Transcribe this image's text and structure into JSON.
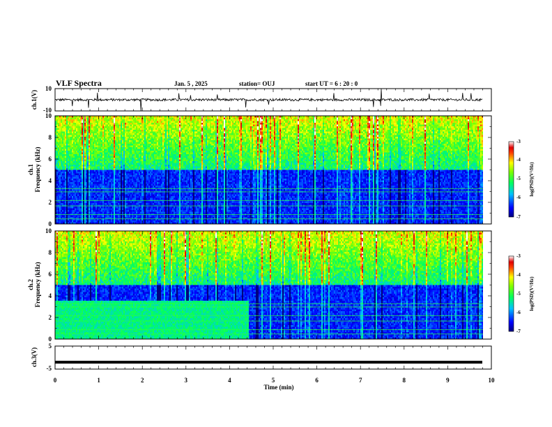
{
  "header": {
    "title": "VLF Spectra",
    "date": "Jan. 5 , 2025",
    "station": "station= OUJ",
    "start": "start UT = 6 : 20 : 0"
  },
  "chart_data": [
    {
      "type": "line",
      "panel": "ch1-waveform",
      "ylabel": "ch.1(V)",
      "yticks": [
        "10",
        "-10"
      ],
      "ylim": [
        -10,
        10
      ],
      "xlim": [
        0,
        10
      ],
      "description_values": {
        "baseline": 0,
        "typical_range": [
          -1,
          1
        ],
        "spike_range": [
          -10,
          10
        ]
      }
    },
    {
      "type": "heatmap",
      "panel": "ch1-spectrogram",
      "ylabel_line1": "ch.1",
      "ylabel_line2": "Frequency (kHz)",
      "yticks": [
        "0",
        "2",
        "4",
        "6",
        "8",
        "10"
      ],
      "ylim": [
        0,
        10
      ],
      "xlim": [
        0,
        9.8
      ],
      "colorbar": {
        "label": "log(PSD)(V²/Hz)",
        "range": [
          -7,
          -3
        ],
        "ticks": [
          "-3",
          "-4",
          "-5",
          "-6",
          "-7"
        ]
      }
    },
    {
      "type": "heatmap",
      "panel": "ch2-spectrogram",
      "ylabel_line1": "ch.2",
      "ylabel_line2": "Frequency (kHz)",
      "yticks": [
        "0",
        "2",
        "4",
        "6",
        "8",
        "10"
      ],
      "ylim": [
        0,
        10
      ],
      "xlim": [
        0,
        9.8
      ],
      "change_time_min": 4.45,
      "colorbar": {
        "label": "log(PSD)(V²/Hz)",
        "range": [
          -7,
          -3
        ],
        "ticks": [
          "-3",
          "-4",
          "-5",
          "-6",
          "-7"
        ]
      }
    },
    {
      "type": "line",
      "panel": "ch3-waveform",
      "ylabel": "ch.3(V)",
      "yticks": [
        "5",
        "-5"
      ],
      "ylim": [
        -5,
        5
      ],
      "xlim": [
        0,
        10
      ],
      "constant_value": -2
    }
  ],
  "xaxis": {
    "label": "Time (min)",
    "ticks": [
      "0",
      "1",
      "2",
      "3",
      "4",
      "5",
      "6",
      "7",
      "8",
      "9",
      "10"
    ]
  }
}
